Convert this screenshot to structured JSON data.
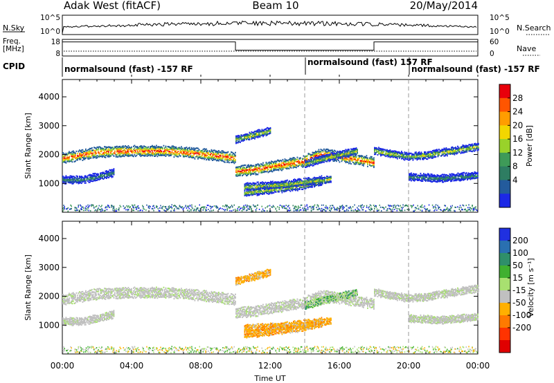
{
  "header": {
    "radar": "Adak West (fitACF)",
    "beam": "Beam 10",
    "date": "20/May/2014"
  },
  "noise_panel": {
    "left_label": "N.Sky",
    "right_label": "N.Search",
    "left_ticks": [
      "10^5",
      "10^0"
    ],
    "right_ticks": [
      "10^5",
      "10^0"
    ]
  },
  "freq_panel": {
    "left_label_1": "Freq.",
    "left_label_2": "[MHz]",
    "right_label": "Nave",
    "left_ticks": [
      "18",
      "8"
    ],
    "right_ticks": [
      "60",
      "0"
    ],
    "freq_steps": [
      {
        "start": 0,
        "end": 10,
        "value": 16.5
      },
      {
        "start": 10,
        "end": 18,
        "value": 11.5
      },
      {
        "start": 18,
        "end": 24,
        "value": 16.5
      }
    ]
  },
  "cpid": {
    "label": "CPID",
    "segments": [
      {
        "start": 0,
        "text": "normalsound (fast) -157 RF"
      },
      {
        "start": 14,
        "text": "normalsound (fast) 157 RF"
      },
      {
        "start": 20,
        "text": "normalsound (fast) -157 RF"
      }
    ]
  },
  "power_colorbar": {
    "label": "Power [dB]",
    "ticks": [
      "28",
      "24",
      "20",
      "16",
      "12",
      "8",
      "4"
    ],
    "colors": [
      "#e8000b",
      "#ff5500",
      "#ff9d00",
      "#f2d600",
      "#99d22a",
      "#3e9a58",
      "#2e7d62",
      "#235b9c",
      "#1c28e6"
    ]
  },
  "velocity_colorbar": {
    "label": "Velocity [m s⁻¹]",
    "ticks": [
      "200",
      "100",
      "50",
      "15",
      "-15",
      "-50",
      "-100",
      "-200"
    ],
    "colors": [
      "#2030e0",
      "#2a70b0",
      "#2f8f6a",
      "#40b030",
      "#a8e070",
      "#c0c0c0",
      "#ffb000",
      "#ff7a00",
      "#ff3300",
      "#e00000"
    ]
  },
  "chart_data": {
    "type": "heatmap",
    "xlabel": "Time UT",
    "ylabel": "Slant Range [km]",
    "x_ticks": [
      "00:00",
      "04:00",
      "08:00",
      "12:00",
      "16:00",
      "20:00",
      "00:00"
    ],
    "y_ticks": [
      "1000",
      "2000",
      "3000",
      "4000"
    ],
    "xlim": [
      0,
      24
    ],
    "ylim": [
      0,
      4600
    ],
    "dashed_lines_hours": [
      14,
      20
    ],
    "echo_bands": [
      {
        "hours": [
          0,
          2,
          4,
          6,
          8,
          10
        ],
        "range": [
          1900,
          2100,
          2150,
          2150,
          2050,
          1900
        ],
        "power": "high",
        "velocity": "low"
      },
      {
        "hours": [
          10,
          11,
          12,
          13,
          14
        ],
        "range": [
          1450,
          1500,
          1600,
          1700,
          1800
        ],
        "power": "high",
        "velocity": "low"
      },
      {
        "hours": [
          14,
          15,
          16,
          17,
          18
        ],
        "range": [
          1850,
          2050,
          1950,
          1850,
          1750
        ],
        "power": "high",
        "velocity": "low"
      },
      {
        "hours": [
          18,
          19,
          20,
          21,
          22,
          24
        ],
        "range": [
          2150,
          2050,
          1950,
          2000,
          2100,
          2300
        ],
        "power": "medium",
        "velocity": "low"
      },
      {
        "hours": [
          0,
          1,
          2,
          3
        ],
        "range": [
          1150,
          1150,
          1250,
          1400
        ],
        "power": "low",
        "velocity": "low"
      },
      {
        "hours": [
          20,
          22,
          24
        ],
        "range": [
          1250,
          1200,
          1300
        ],
        "power": "low",
        "velocity": "low"
      },
      {
        "hours": [
          10.5,
          12,
          14,
          15.5
        ],
        "range": [
          700,
          800,
          950,
          1200
        ],
        "power": "medium",
        "velocity": "negative"
      },
      {
        "hours": [
          10.5,
          13,
          15
        ],
        "range": [
          900,
          1000,
          1150
        ],
        "power": "medium",
        "velocity": "negative"
      },
      {
        "hours": [
          10,
          11,
          12
        ],
        "range": [
          2550,
          2700,
          2850
        ],
        "power": "medium",
        "velocity": "negative"
      },
      {
        "hours": [
          14,
          15.5,
          17
        ],
        "range": [
          1700,
          1950,
          2150
        ],
        "power": "medium",
        "velocity": "positive"
      }
    ]
  }
}
